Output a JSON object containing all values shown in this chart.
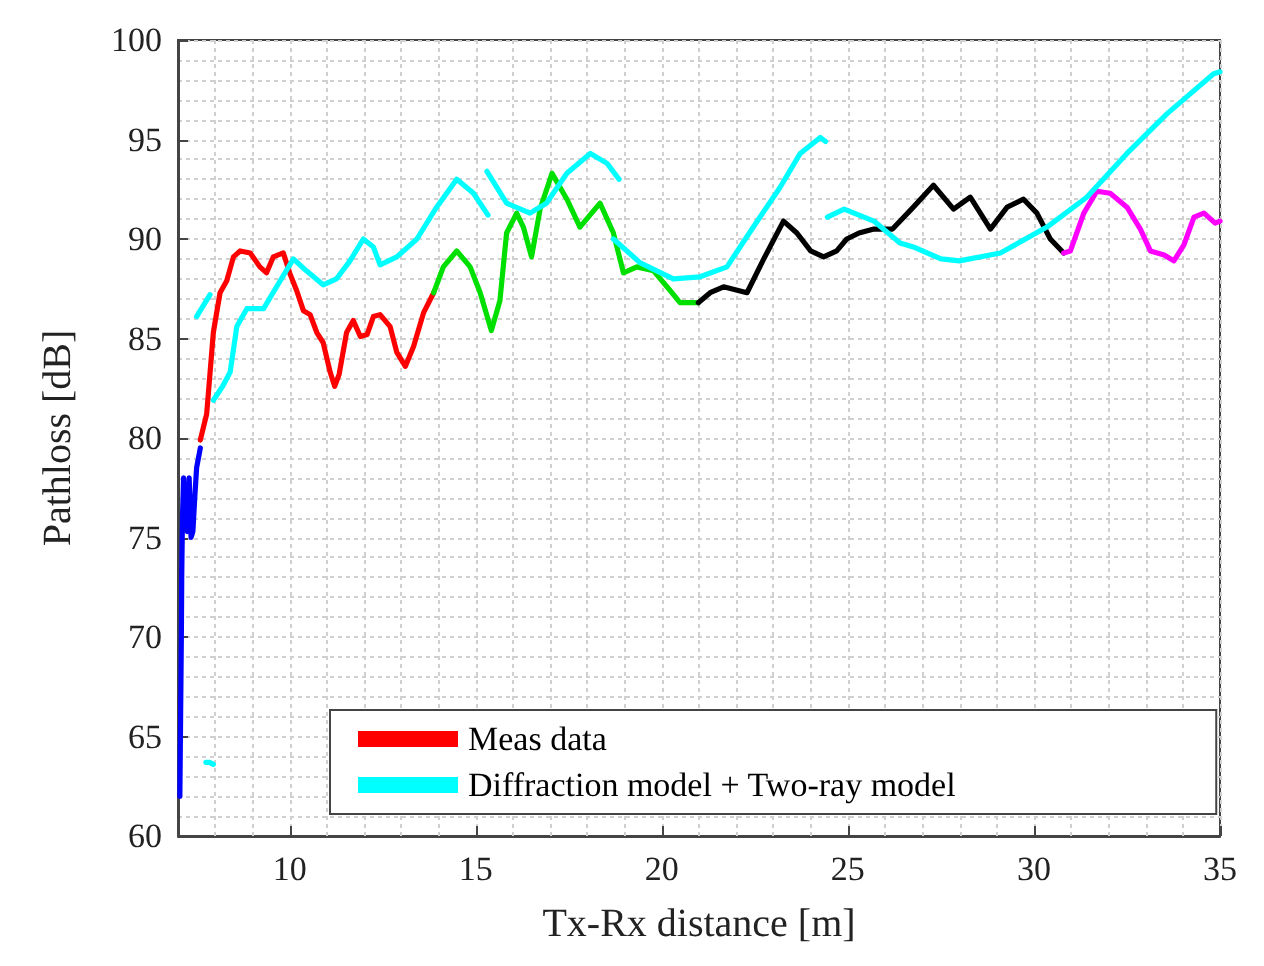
{
  "chart_data": {
    "type": "line",
    "xlabel": "Tx-Rx distance [m]",
    "ylabel": "Pathloss [dB]",
    "xlim": [
      7,
      35
    ],
    "xticks": [
      10,
      15,
      20,
      25,
      30,
      35
    ],
    "ylim": [
      60,
      100
    ],
    "yticks": [
      60,
      65,
      70,
      75,
      80,
      85,
      90,
      95,
      100
    ],
    "grid": true,
    "legend": "bottom",
    "series": [
      {
        "color": "#0000ff",
        "x": [
          7.05,
          7.07,
          7.09,
          7.1,
          7.12,
          7.15,
          7.2,
          7.25,
          7.3,
          7.35,
          7.4,
          7.45,
          7.5,
          7.6
        ],
        "values": [
          62,
          66,
          70,
          73,
          76,
          78,
          76,
          75.3,
          78,
          75,
          75.3,
          77,
          78.5,
          79.5
        ]
      },
      {
        "name": "Meas data",
        "color": "#ff0000",
        "x": [
          7.6,
          7.77,
          7.95,
          8.13,
          8.31,
          8.49,
          8.67,
          8.94,
          9.2,
          9.38,
          9.56,
          9.83,
          10.0,
          10.19,
          10.37,
          10.55,
          10.73,
          10.9,
          11.09,
          11.21,
          11.33,
          11.53,
          11.71,
          11.9,
          12.08,
          12.25,
          12.43,
          12.7,
          12.88,
          13.11,
          13.33,
          13.6,
          13.87
        ],
        "values": [
          79.9,
          81.2,
          85.3,
          87.3,
          87.9,
          89.1,
          89.4,
          89.3,
          88.6,
          88.3,
          89.1,
          89.3,
          88.3,
          87.4,
          86.4,
          86.2,
          85.3,
          84.8,
          83.3,
          82.6,
          83.2,
          85.3,
          85.9,
          85.1,
          85.2,
          86.1,
          86.2,
          85.6,
          84.3,
          83.6,
          84.6,
          86.3,
          87.3
        ]
      },
      {
        "color": "#00e000",
        "x": [
          13.87,
          14.13,
          14.49,
          14.85,
          15.12,
          15.42,
          15.65,
          15.83,
          16.1,
          16.28,
          16.5,
          16.73,
          17.05,
          17.45,
          17.8,
          18.34,
          18.7,
          18.97,
          19.33,
          19.78,
          20.14,
          20.49,
          20.98
        ],
        "values": [
          87.3,
          88.6,
          89.4,
          88.6,
          87.3,
          85.4,
          86.9,
          90.3,
          91.3,
          90.6,
          89.1,
          91.5,
          93.3,
          92.0,
          90.6,
          91.8,
          90.3,
          88.3,
          88.6,
          88.4,
          87.6,
          86.8,
          86.8
        ]
      },
      {
        "color": "#000000",
        "x": [
          20.98,
          21.3,
          21.66,
          22.29,
          22.74,
          23.27,
          23.63,
          24.0,
          24.35,
          24.7,
          24.97,
          25.3,
          25.7,
          26.2,
          26.76,
          27.3,
          27.84,
          28.29,
          28.83,
          29.28,
          29.72,
          30.08,
          30.44,
          30.8
        ],
        "values": [
          86.8,
          87.3,
          87.6,
          87.3,
          89.0,
          90.9,
          90.3,
          89.4,
          89.1,
          89.4,
          90.0,
          90.3,
          90.5,
          90.5,
          91.6,
          92.7,
          91.5,
          92.1,
          90.5,
          91.6,
          92.0,
          91.3,
          90.0,
          89.3
        ]
      },
      {
        "color": "#ff00ff",
        "x": [
          30.8,
          30.98,
          31.34,
          31.69,
          32.05,
          32.5,
          32.86,
          33.13,
          33.5,
          33.76,
          34.03,
          34.3,
          34.57,
          34.87,
          35
        ],
        "values": [
          89.3,
          89.4,
          91.3,
          92.4,
          92.3,
          91.6,
          90.5,
          89.4,
          89.2,
          88.9,
          89.7,
          91.1,
          91.3,
          90.8,
          90.9
        ]
      },
      {
        "name": "Diffraction model + Two-ray model",
        "color": "#00ffff",
        "x": [
          7.95,
          8.2,
          8.4,
          8.58,
          8.85,
          9.3,
          9.65,
          10.1,
          10.45,
          10.9,
          11.26,
          11.62,
          11.98,
          12.25,
          12.43,
          12.88,
          13.42,
          13.95,
          14.49,
          14.94,
          15.33
        ],
        "values": [
          81.9,
          82.6,
          83.3,
          85.6,
          86.5,
          86.5,
          87.6,
          89.0,
          88.4,
          87.7,
          88.0,
          88.9,
          90.0,
          89.6,
          88.7,
          89.1,
          90.0,
          91.6,
          93.0,
          92.3,
          91.2
        ]
      },
      {
        "color": "#00ffff",
        "x": [
          7.5,
          7.86
        ],
        "values": [
          86.1,
          87.2
        ]
      },
      {
        "color": "#00ffff",
        "x": [
          15.3,
          15.83,
          16.46,
          16.9,
          17.45,
          18.08,
          18.53,
          18.85
        ],
        "values": [
          93.4,
          91.8,
          91.3,
          91.8,
          93.3,
          94.3,
          93.8,
          93.0
        ]
      },
      {
        "color": "#00ffff",
        "x": [
          18.7,
          19.42,
          20.31,
          21.03,
          21.75,
          22.46,
          23.18,
          23.72,
          24.26,
          24.4
        ],
        "values": [
          90.0,
          88.8,
          88.0,
          88.1,
          88.6,
          90.6,
          92.6,
          94.3,
          95.1,
          94.9
        ]
      },
      {
        "color": "#00ffff",
        "x": [
          24.45,
          24.9,
          25.7,
          26.4,
          26.76,
          27.5,
          28.0,
          29.1,
          30.35,
          31.42,
          32.5,
          33.58,
          34.83,
          35
        ],
        "values": [
          91.1,
          91.5,
          90.9,
          89.8,
          89.6,
          89.0,
          88.9,
          89.3,
          90.6,
          92.1,
          94.3,
          96.3,
          98.3,
          98.4
        ]
      },
      {
        "color": "#00ffff",
        "x": [
          7.75,
          7.85,
          7.95
        ],
        "values": [
          63.7,
          63.7,
          63.6
        ]
      }
    ]
  }
}
